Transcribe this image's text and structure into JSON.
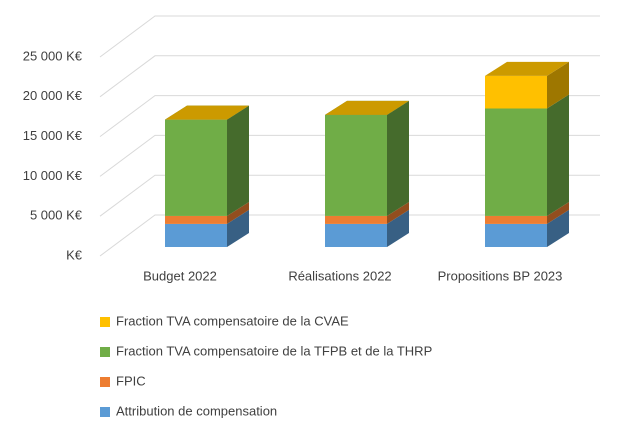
{
  "chart_data": {
    "type": "bar3d-stacked",
    "categories": [
      "Budget 2022",
      "Réalisations 2022",
      "Propositions BP 2023"
    ],
    "series": [
      {
        "name": "Attribution de compensation",
        "color": "#5b9bd5",
        "values": [
          2900,
          2900,
          2900
        ]
      },
      {
        "name": "FPIC",
        "color": "#ed7d31",
        "values": [
          1000,
          1000,
          1000
        ]
      },
      {
        "name": "Fraction TVA compensatoire de la TFPB et de la THRP",
        "color": "#70ad47",
        "values": [
          12100,
          12700,
          13500
        ]
      },
      {
        "name": "Fraction TVA compensatoire de la CVAE",
        "color": "#ffc000",
        "values": [
          0,
          0,
          4100
        ]
      }
    ],
    "ylim": [
      0,
      25000
    ],
    "yticks": [
      {
        "value": 0,
        "label": "K€"
      },
      {
        "value": 5000,
        "label": "5 000 K€"
      },
      {
        "value": 10000,
        "label": "10 000 K€"
      },
      {
        "value": 15000,
        "label": "15 000 K€"
      },
      {
        "value": 20000,
        "label": "20 000 K€"
      },
      {
        "value": 25000,
        "label": "25 000 K€"
      }
    ],
    "grid": true,
    "legend": "bottom"
  }
}
